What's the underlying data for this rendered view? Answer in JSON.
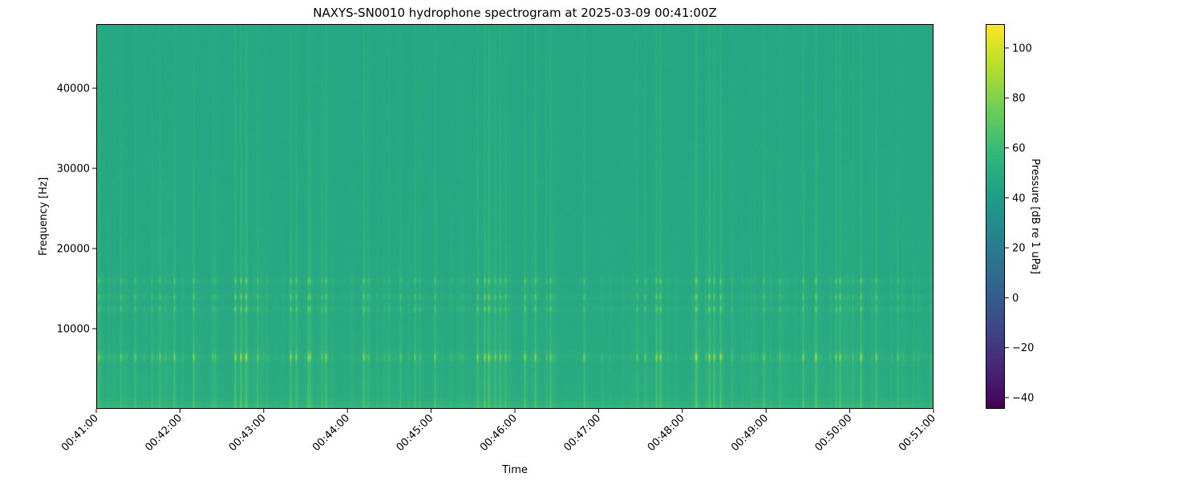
{
  "chart_data": {
    "type": "heatmap",
    "title": "NAXYS-SN0010 hydrophone spectrogram at 2025-03-09 00:41:00Z",
    "xlabel": "Time",
    "ylabel": "Frequency [Hz]",
    "x_tick_labels": [
      "00:41:00",
      "00:42:00",
      "00:43:00",
      "00:44:00",
      "00:45:00",
      "00:46:00",
      "00:47:00",
      "00:48:00",
      "00:49:00",
      "00:50:00",
      "00:51:00"
    ],
    "xlim": [
      "00:41:00",
      "00:51:00"
    ],
    "y_ticks": [
      10000,
      20000,
      30000,
      40000
    ],
    "ylim": [
      0,
      48000
    ],
    "colorbar": {
      "label": "Pressure [dB re 1 uPa]",
      "ticks": [
        -40,
        -20,
        0,
        20,
        40,
        60,
        80,
        100
      ],
      "range": [
        -44.5,
        109.6
      ],
      "colormap": "viridis"
    },
    "background_level_db": 47,
    "tonal_bands_hz": [
      6500,
      12500,
      14000,
      16000
    ],
    "grid": false
  }
}
